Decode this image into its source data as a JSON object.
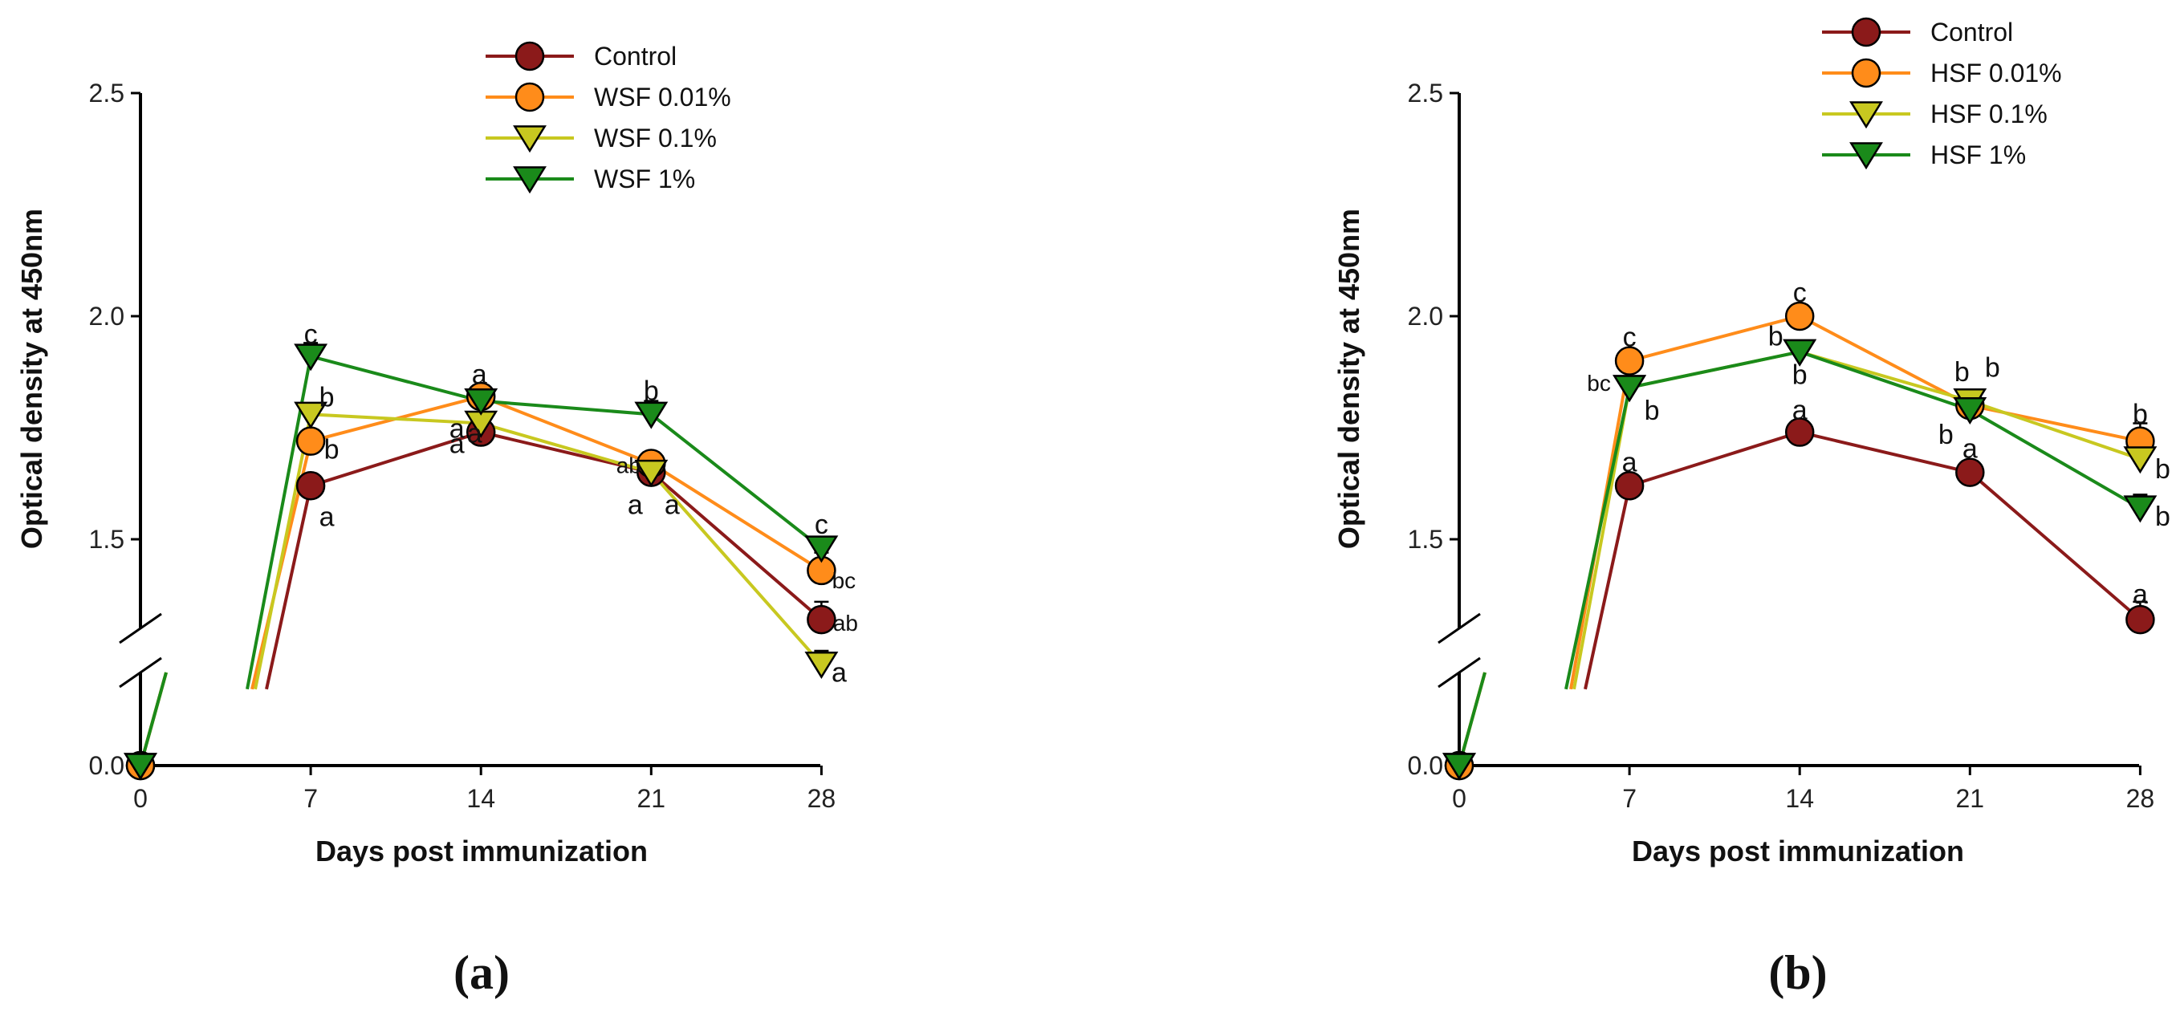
{
  "chart_data": [
    {
      "type": "line",
      "panel_label": "(a)",
      "xlabel": "Days post immunization",
      "ylabel": "Optical density at 450nm",
      "x": [
        0,
        7,
        14,
        21,
        28
      ],
      "x_ticks": [
        "0",
        "7",
        "14",
        "21",
        "28"
      ],
      "y_ticks": [
        "0.0",
        "1.5",
        "2.0",
        "2.5"
      ],
      "y_break": true,
      "ylim_upper": [
        1.2,
        2.5
      ],
      "legend_position": "top-right",
      "series": [
        {
          "name": "Control",
          "color": "#8b1a1a",
          "marker": "circle",
          "values": [
            0.0,
            1.62,
            1.74,
            1.65,
            1.32
          ],
          "errors": [
            0,
            0,
            0,
            0,
            0.04
          ],
          "labels": [
            "",
            "a",
            "a",
            "a",
            "ab"
          ]
        },
        {
          "name": "WSF 0.01%",
          "color": "#ff8c1a",
          "marker": "circle",
          "values": [
            0.0,
            1.72,
            1.82,
            1.67,
            1.43
          ],
          "errors": [
            0,
            0,
            0.02,
            0,
            0.04
          ],
          "labels": [
            "",
            "b",
            "a",
            "ab",
            "bc"
          ]
        },
        {
          "name": "WSF 0.1%",
          "color": "#c8c820",
          "marker": "triangle-down",
          "values": [
            0.0,
            1.78,
            1.76,
            1.65,
            1.22
          ],
          "errors": [
            0,
            0,
            0,
            0,
            0.03
          ],
          "labels": [
            "",
            "b",
            "a",
            "a",
            "a"
          ]
        },
        {
          "name": "WSF 1%",
          "color": "#1a8a1a",
          "marker": "triangle-down",
          "values": [
            0.0,
            1.91,
            1.81,
            1.78,
            1.48
          ],
          "errors": [
            0,
            0.03,
            0,
            0.03,
            0
          ],
          "labels": [
            "",
            "c",
            "a",
            "b",
            "c"
          ]
        }
      ]
    },
    {
      "type": "line",
      "panel_label": "(b)",
      "xlabel": "Days post immunization",
      "ylabel": "Optical density at 450nm",
      "x": [
        0,
        7,
        14,
        21,
        28
      ],
      "x_ticks": [
        "0",
        "7",
        "14",
        "21",
        "28"
      ],
      "y_ticks": [
        "0.0",
        "1.5",
        "2.0",
        "2.5"
      ],
      "y_break": true,
      "ylim_upper": [
        1.2,
        2.5
      ],
      "legend_position": "top-right",
      "series": [
        {
          "name": "Control",
          "color": "#8b1a1a",
          "marker": "circle",
          "values": [
            0.0,
            1.62,
            1.74,
            1.65,
            1.32
          ],
          "errors": [
            0,
            0,
            0,
            0,
            0.04
          ],
          "labels": [
            "",
            "a",
            "a",
            "a",
            "a"
          ]
        },
        {
          "name": "HSF 0.01%",
          "color": "#ff8c1a",
          "marker": "circle",
          "values": [
            0.0,
            1.9,
            2.0,
            1.8,
            1.72
          ],
          "errors": [
            0,
            0,
            0,
            0,
            0.04
          ],
          "labels": [
            "",
            "c",
            "c",
            "b",
            "b"
          ]
        },
        {
          "name": "HSF 0.1%",
          "color": "#c8c820",
          "marker": "triangle-down",
          "values": [
            0.0,
            1.84,
            1.92,
            1.81,
            1.68
          ],
          "errors": [
            0,
            0,
            0,
            0.02,
            0
          ],
          "labels": [
            "",
            "b",
            "b",
            "b",
            "b"
          ]
        },
        {
          "name": "HSF 1%",
          "color": "#1a8a1a",
          "marker": "triangle-down",
          "values": [
            0.0,
            1.84,
            1.92,
            1.79,
            1.57
          ],
          "errors": [
            0,
            0,
            0,
            0,
            0.03
          ],
          "labels": [
            "",
            "bc",
            "b",
            "b",
            "b"
          ]
        }
      ]
    }
  ]
}
